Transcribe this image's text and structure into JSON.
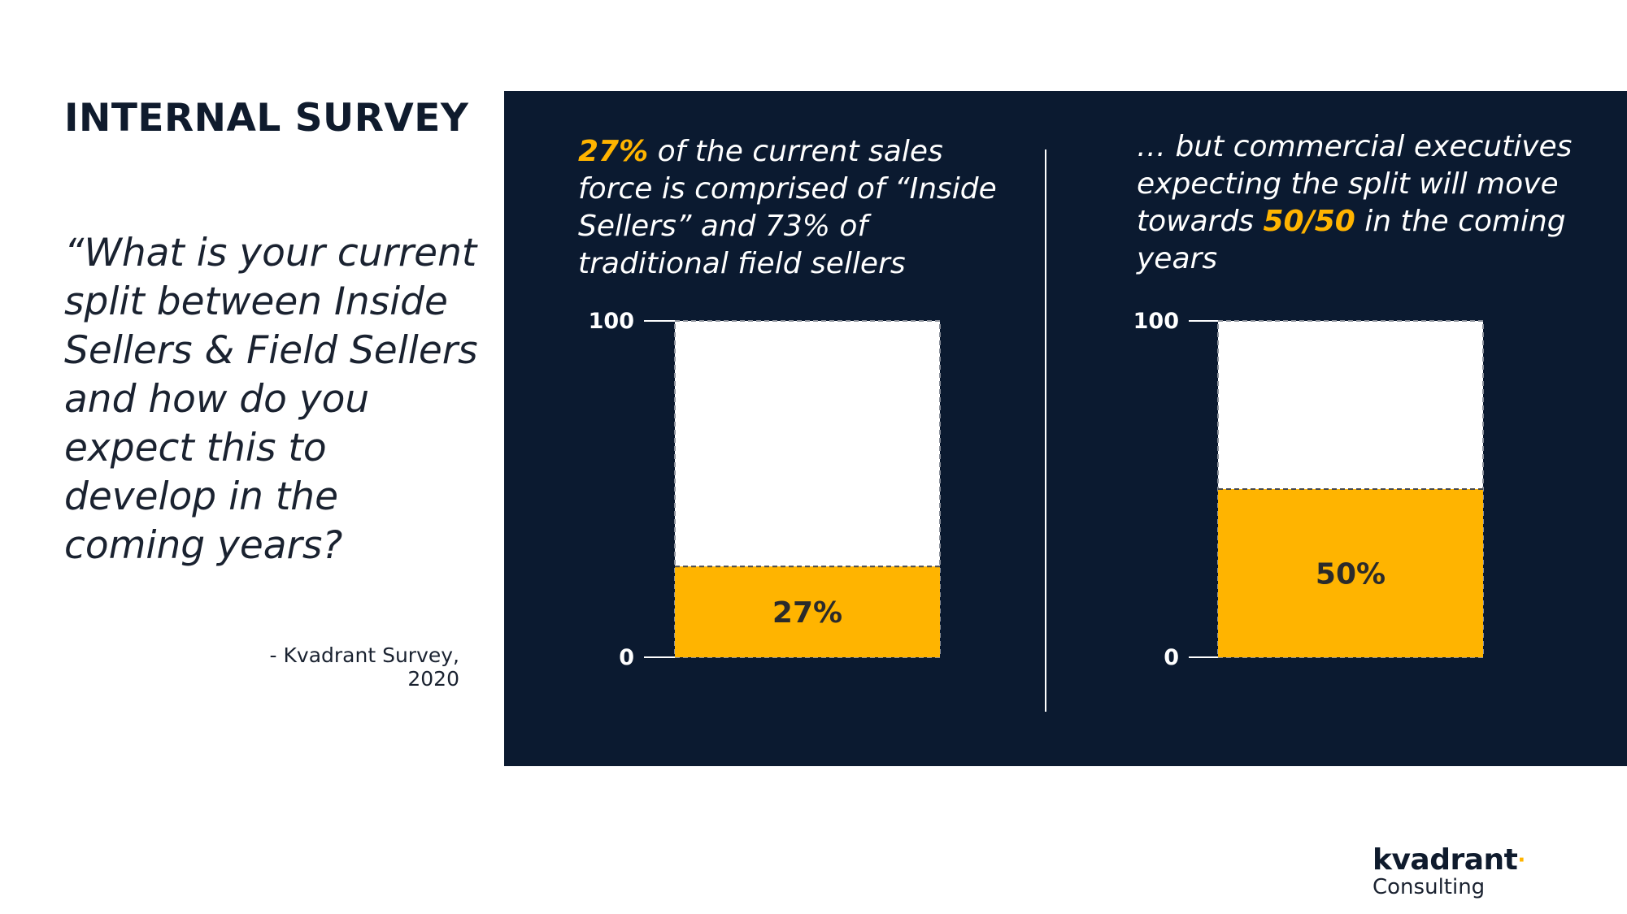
{
  "header": {
    "title": "INTERNAL SURVEY"
  },
  "quote": {
    "text": "“What is your current split between Inside Sellers & Field Sellers and how do you expect this to develop in the coming years?",
    "source": "- Kvadrant Survey, 2020"
  },
  "left_caption": {
    "highlight": "27%",
    "rest": " of the current sales force is comprised of “Inside Sellers” and 73% of traditional field sellers"
  },
  "right_caption": {
    "before": "… but commercial executives expecting the split will move towards ",
    "highlight": "50/50",
    "after": " in the coming years"
  },
  "logo": {
    "name": "kvadrant",
    "dot": "·",
    "sub": "Consulting"
  },
  "colors": {
    "navy": "#0b1a30",
    "accent": "#ffb400",
    "white": "#ffffff",
    "text": "#0f1b2d"
  },
  "chart_data": [
    {
      "type": "bar",
      "categories": [
        ""
      ],
      "values": [
        27
      ],
      "data_labels": [
        "27%"
      ],
      "ylim": [
        0,
        100
      ],
      "ytick_labels": [
        "100",
        "0"
      ],
      "title": "",
      "xlabel": "",
      "ylabel": "",
      "grid": false
    },
    {
      "type": "bar",
      "categories": [
        ""
      ],
      "values": [
        50
      ],
      "data_labels": [
        "50%"
      ],
      "ylim": [
        0,
        100
      ],
      "ytick_labels": [
        "100",
        "0"
      ],
      "title": "",
      "xlabel": "",
      "ylabel": "",
      "grid": false
    }
  ]
}
